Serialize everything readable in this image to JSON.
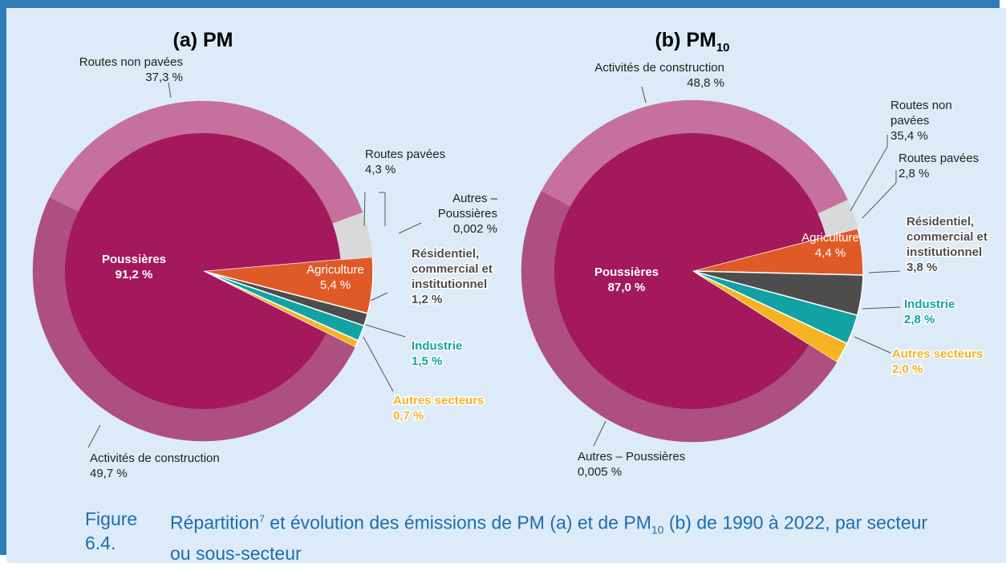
{
  "chart_data": [
    {
      "type": "pie",
      "title": "(a) PM",
      "categories": [
        "Poussières",
        "Agriculture",
        "Résidentiel, commercial et institutionnel",
        "Industrie",
        "Autres secteurs"
      ],
      "values": [
        91.2,
        5.4,
        1.2,
        1.5,
        0.7
      ],
      "value_labels": [
        "91,2 %",
        "5,4 %",
        "1,2 %",
        "1,5 %",
        "0,7 %"
      ],
      "colors": [
        "#a3195b",
        "#e05a27",
        "#4d4d4d",
        "#12a2a3",
        "#f5b324"
      ],
      "sub_categories": [
        "Activités de construction",
        "Routes non pavées",
        "Routes pavées",
        "Autres – Poussières"
      ],
      "sub_values": [
        49.7,
        37.3,
        4.3,
        0.002
      ],
      "sub_value_labels": [
        "49,7 %",
        "37,3 %",
        "4,3 %",
        "0,002 %"
      ],
      "sub_colors": [
        "#ad4f7f",
        "#c5719c",
        "#d9d9d9",
        "#d9d9d9"
      ]
    },
    {
      "type": "pie",
      "title": "(b) PM",
      "title_subscript": "10",
      "categories": [
        "Poussières",
        "Agriculture",
        "Résidentiel, commercial et institutionnel",
        "Industrie",
        "Autres secteurs"
      ],
      "values": [
        87.0,
        4.4,
        3.8,
        2.8,
        2.0
      ],
      "value_labels": [
        "87,0 %",
        "4,4 %",
        "3,8 %",
        "2,8 %",
        "2,0 %"
      ],
      "colors": [
        "#a3195b",
        "#e05a27",
        "#4d4d4d",
        "#12a2a3",
        "#f5b324"
      ],
      "sub_categories": [
        "Activités de construction",
        "Routes non pavées",
        "Routes pavées",
        "Autres – Poussières"
      ],
      "sub_values": [
        48.8,
        35.4,
        2.8,
        0.005
      ],
      "sub_value_labels": [
        "48,8 %",
        "35,4 %",
        "2,8 %",
        "0,005 %"
      ],
      "sub_colors": [
        "#ad4f7f",
        "#c5719c",
        "#d9d9d9",
        "#d9d9d9"
      ]
    }
  ],
  "caption": {
    "label": "Figure 6.4.",
    "parts": [
      "Répartition",
      "7",
      " et évolution des émissions de PM (a) et de PM",
      "10",
      " (b) de 1990 à 2022, par secteur ou sous-secteur"
    ]
  }
}
